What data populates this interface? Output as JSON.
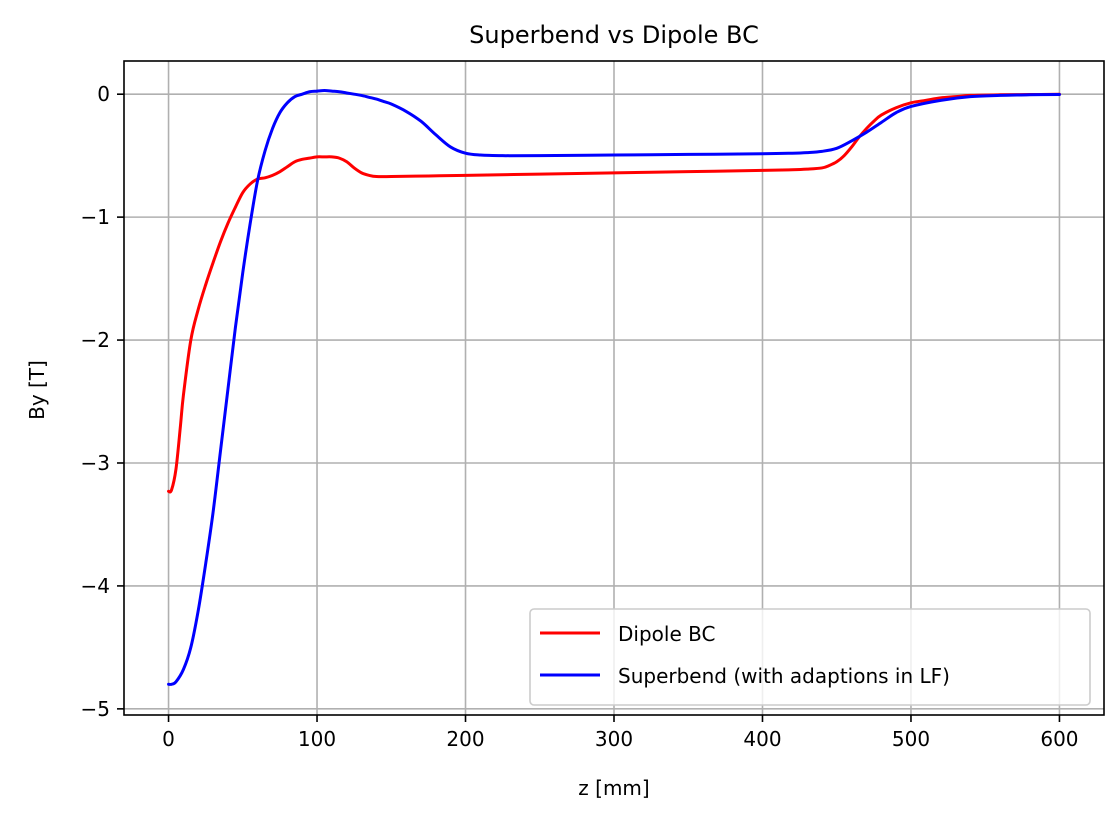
{
  "chart_data": {
    "type": "line",
    "title": "Superbend vs Dipole BC",
    "xlabel": "z [mm]",
    "ylabel": "By [T]",
    "xlim": [
      -30,
      630
    ],
    "ylim": [
      -5.05,
      0.27
    ],
    "xticks": [
      0,
      100,
      200,
      300,
      400,
      500,
      600
    ],
    "xtick_labels": [
      "0",
      "100",
      "200",
      "300",
      "400",
      "500",
      "600"
    ],
    "yticks": [
      0,
      -1,
      -2,
      -3,
      -4,
      -5
    ],
    "ytick_labels": [
      "0",
      "−1",
      "−2",
      "−3",
      "−4",
      "−5"
    ],
    "grid": true,
    "legend_position": "lower-right",
    "series": [
      {
        "name": "Dipole BC",
        "color": "#ff0000",
        "x": [
          0,
          2,
          5,
          8,
          10,
          15,
          20,
          25,
          30,
          35,
          40,
          45,
          50,
          55,
          60,
          65,
          70,
          75,
          80,
          85,
          90,
          95,
          100,
          105,
          110,
          115,
          120,
          125,
          130,
          135,
          140,
          150,
          175,
          200,
          250,
          300,
          350,
          400,
          420,
          430,
          440,
          445,
          450,
          455,
          460,
          465,
          470,
          475,
          480,
          490,
          500,
          510,
          520,
          530,
          540,
          560,
          580,
          600
        ],
        "y": [
          -3.23,
          -3.22,
          -3.05,
          -2.7,
          -2.45,
          -2.0,
          -1.75,
          -1.55,
          -1.37,
          -1.2,
          -1.05,
          -0.92,
          -0.8,
          -0.73,
          -0.69,
          -0.68,
          -0.66,
          -0.63,
          -0.59,
          -0.55,
          -0.53,
          -0.52,
          -0.51,
          -0.51,
          -0.51,
          -0.52,
          -0.55,
          -0.6,
          -0.64,
          -0.66,
          -0.67,
          -0.67,
          -0.665,
          -0.66,
          -0.65,
          -0.64,
          -0.63,
          -0.62,
          -0.615,
          -0.61,
          -0.6,
          -0.58,
          -0.55,
          -0.5,
          -0.43,
          -0.35,
          -0.28,
          -0.22,
          -0.17,
          -0.11,
          -0.07,
          -0.05,
          -0.03,
          -0.02,
          -0.01,
          -0.005,
          -0.003,
          -0.001
        ]
      },
      {
        "name": "Superbend (with adaptions in LF)",
        "color": "#0000ff",
        "x": [
          0,
          2,
          5,
          10,
          15,
          20,
          25,
          30,
          35,
          40,
          45,
          50,
          55,
          60,
          65,
          70,
          75,
          80,
          85,
          90,
          95,
          100,
          105,
          110,
          115,
          120,
          125,
          130,
          135,
          140,
          145,
          150,
          160,
          170,
          180,
          190,
          200,
          210,
          225,
          250,
          300,
          350,
          400,
          420,
          430,
          440,
          450,
          460,
          470,
          480,
          490,
          500,
          520,
          540,
          560,
          580,
          600
        ],
        "y": [
          -4.8,
          -4.8,
          -4.78,
          -4.68,
          -4.5,
          -4.2,
          -3.82,
          -3.4,
          -2.9,
          -2.4,
          -1.9,
          -1.45,
          -1.05,
          -0.7,
          -0.46,
          -0.28,
          -0.15,
          -0.07,
          -0.02,
          0.0,
          0.02,
          0.025,
          0.03,
          0.025,
          0.02,
          0.01,
          0.0,
          -0.01,
          -0.025,
          -0.04,
          -0.06,
          -0.08,
          -0.14,
          -0.22,
          -0.33,
          -0.43,
          -0.48,
          -0.495,
          -0.5,
          -0.5,
          -0.495,
          -0.49,
          -0.485,
          -0.48,
          -0.475,
          -0.465,
          -0.44,
          -0.38,
          -0.31,
          -0.23,
          -0.15,
          -0.1,
          -0.05,
          -0.02,
          -0.01,
          -0.005,
          -0.002
        ]
      }
    ]
  }
}
